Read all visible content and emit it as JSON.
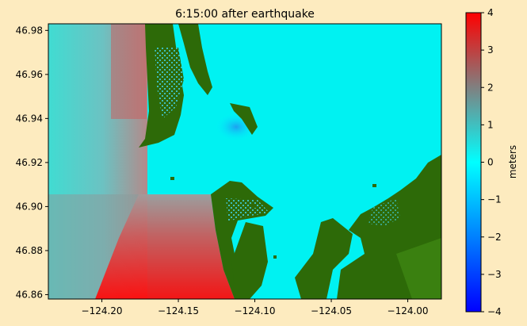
{
  "chart_data": {
    "type": "heatmap",
    "title": "6:15:00 after earthquake",
    "xlabel": "",
    "ylabel": "",
    "xlim": [
      -124.235,
      -123.978
    ],
    "ylim": [
      46.858,
      46.983
    ],
    "x_ticks": [
      -124.2,
      -124.15,
      -124.1,
      -124.05,
      -124.0
    ],
    "x_tick_labels": [
      "−124.20",
      "−124.15",
      "−124.10",
      "−124.05",
      "−124.00"
    ],
    "y_ticks": [
      46.86,
      46.88,
      46.9,
      46.92,
      46.94,
      46.96,
      46.98
    ],
    "y_tick_labels": [
      "46.86",
      "46.88",
      "46.90",
      "46.92",
      "46.94",
      "46.96",
      "46.98"
    ],
    "grid": false,
    "colorbar": {
      "label": "meters",
      "range": [
        -4,
        4
      ],
      "ticks": [
        4,
        3,
        2,
        1,
        0,
        -1,
        -2,
        -3,
        -4
      ],
      "tick_labels": [
        "4",
        "3",
        "2",
        "1",
        "0",
        "−1",
        "−2",
        "−3",
        "−4"
      ],
      "colors": {
        "min": "#0000ff",
        "neg_mid": "#0080ff",
        "zero": "#00ffff",
        "pos_mid": "#808080",
        "max": "#ff0000"
      }
    },
    "land_color": "#2d6a08",
    "background_color": "#fdebbf"
  }
}
